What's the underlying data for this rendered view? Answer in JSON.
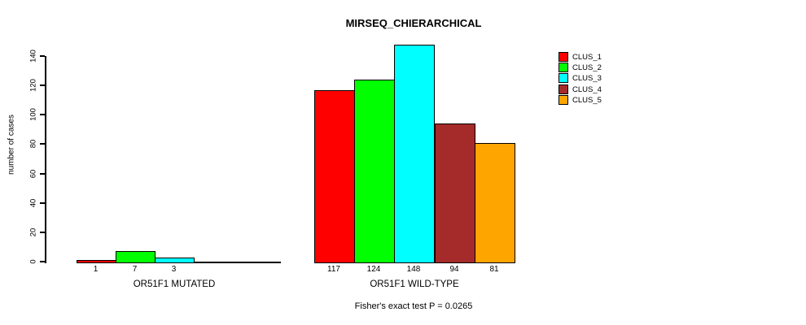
{
  "chart_data": {
    "type": "bar",
    "title": "MIRSEQ_CHIERARCHICAL",
    "categories": [
      "OR51F1 MUTATED",
      "OR51F1 WILD-TYPE"
    ],
    "series": [
      {
        "name": "CLUS_1",
        "color": "#ff0000",
        "values": [
          1,
          117
        ]
      },
      {
        "name": "CLUS_2",
        "color": "#00ff00",
        "values": [
          7,
          124
        ]
      },
      {
        "name": "CLUS_3",
        "color": "#00ffff",
        "values": [
          3,
          148
        ]
      },
      {
        "name": "CLUS_4",
        "color": "#a52a2a",
        "values": [
          0,
          94
        ]
      },
      {
        "name": "CLUS_5",
        "color": "#ffa500",
        "values": [
          0,
          81
        ]
      }
    ],
    "bar_value_labels": [
      [
        "1",
        "7",
        "3",
        "",
        ""
      ],
      [
        "117",
        "124",
        "148",
        "94",
        "81"
      ]
    ],
    "ylabel": "number of cases",
    "ylim": [
      0,
      148
    ],
    "yticks": [
      0,
      20,
      40,
      60,
      80,
      100,
      120,
      140
    ],
    "grid": false,
    "legend_position": "top-right",
    "annotation": "Fisher's exact test P = 0.0265",
    "background_color": "#ffffff",
    "axis_color": "#000000"
  }
}
